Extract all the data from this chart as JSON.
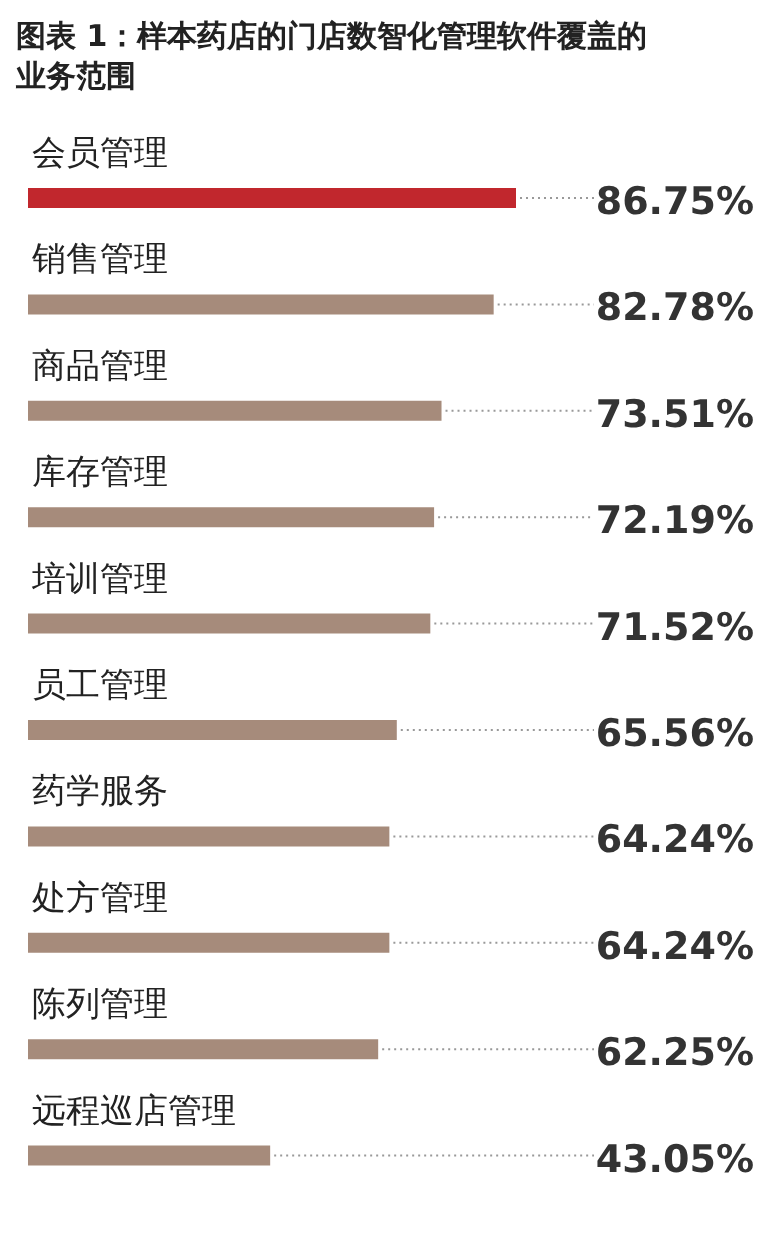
{
  "chart_data": {
    "type": "bar",
    "orientation": "horizontal",
    "title": "图表 1：样本药店的门店数智化管理软件覆盖的业务范围",
    "categories": [
      "会员管理",
      "销售管理",
      "商品管理",
      "库存管理",
      "培训管理",
      "员工管理",
      "药学服务",
      "处方管理",
      "陈列管理",
      "远程巡店管理"
    ],
    "values": [
      86.75,
      82.78,
      73.51,
      72.19,
      71.52,
      65.56,
      64.24,
      64.24,
      62.25,
      43.05
    ],
    "colors": [
      "#c1272d",
      "#a68b7b",
      "#a68b7b",
      "#a68b7b",
      "#a68b7b",
      "#a68b7b",
      "#a68b7b",
      "#a68b7b",
      "#a68b7b",
      "#a68b7b"
    ],
    "value_labels": [
      "86.75%",
      "82.78%",
      "73.51%",
      "72.19%",
      "71.52%",
      "65.56%",
      "64.24%",
      "64.24%",
      "62.25%",
      "43.05%"
    ]
  }
}
